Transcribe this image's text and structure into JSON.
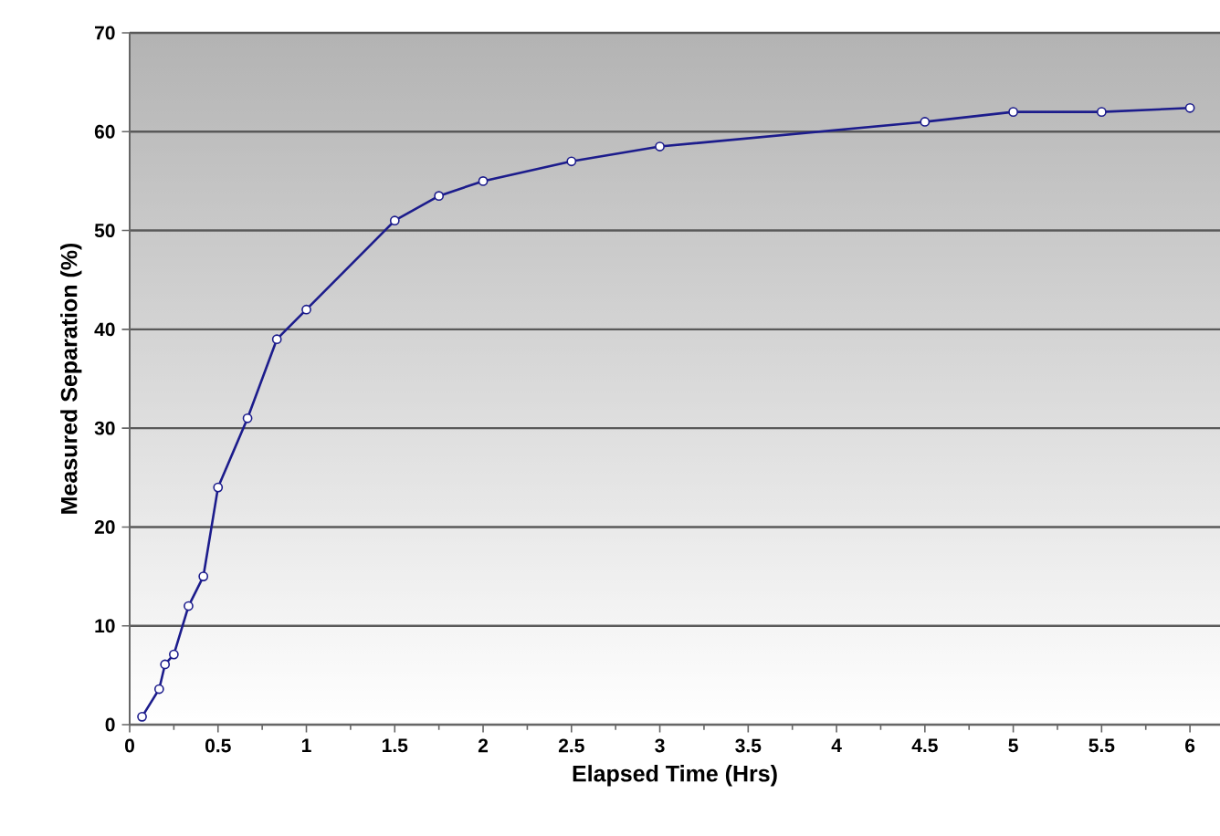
{
  "chart_data": {
    "type": "line",
    "xlabel": "Elapsed Time (Hrs)",
    "ylabel": "Measured Separation (%)",
    "x": [
      0.07,
      0.167,
      0.2,
      0.25,
      0.333,
      0.417,
      0.5,
      0.667,
      0.833,
      1,
      1.5,
      1.75,
      2,
      2.5,
      3,
      4.5,
      5,
      5.5,
      6
    ],
    "series": [
      {
        "color": "#1c1c8c",
        "values": [
          0.8,
          3.6,
          6.1,
          7.1,
          12,
          15,
          24,
          31,
          39,
          42,
          51,
          53.5,
          55,
          57,
          58.5,
          61,
          62,
          62,
          62.4
        ]
      }
    ],
    "xlim": [
      0,
      6.17
    ],
    "ylim": [
      0,
      70
    ],
    "xticks": [
      0,
      0.5,
      1,
      1.5,
      2,
      2.5,
      3,
      3.5,
      4,
      4.5,
      5,
      5.5,
      6
    ],
    "yticks": [
      0,
      10,
      20,
      30,
      40,
      50,
      60,
      70
    ],
    "grid": "y",
    "marker": "circle",
    "line_style": "solid"
  }
}
